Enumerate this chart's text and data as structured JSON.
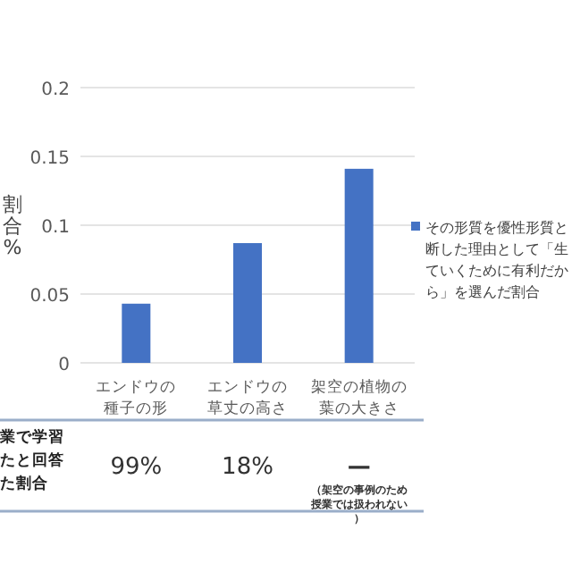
{
  "chart_data": {
    "type": "bar",
    "ylabel": "割合%",
    "categories": [
      "エンドウの種子の形",
      "エンドウの草丈の高さ",
      "架空の植物の葉の大きさ"
    ],
    "series": [
      {
        "name": "その形質を優性形質と断した理由として「生ていくために有利だから」を選んだ割合",
        "color": "#4472c4",
        "values": [
          0.043,
          0.087,
          0.141
        ]
      }
    ],
    "ylim": [
      0,
      0.2
    ],
    "yticks": [
      0,
      0.05,
      0.1,
      0.15,
      0.2
    ],
    "grid": "y",
    "legend": "right",
    "annotations": [
      "業で学習たと回答た割合",
      "99%",
      "18%",
      "—",
      "（架空の事例のため授業では扱われない）"
    ]
  }
}
